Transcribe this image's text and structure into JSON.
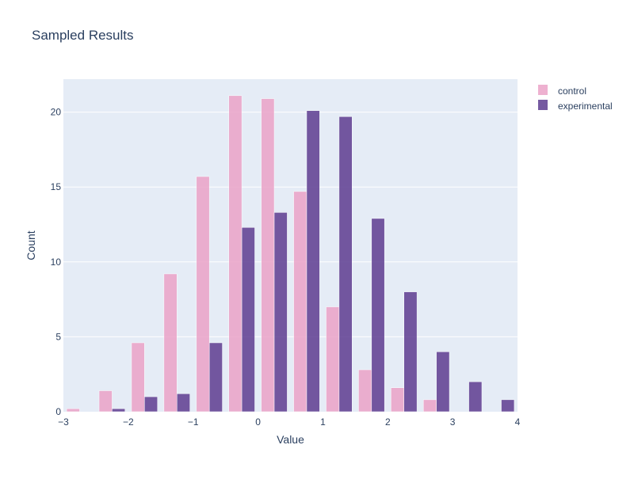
{
  "chart_data": {
    "type": "bar",
    "title": "Sampled Results",
    "xlabel": "Value",
    "ylabel": "Count",
    "xlim": [
      -3,
      4
    ],
    "ylim": [
      0,
      22.2
    ],
    "x_ticks": [
      -3,
      -2,
      -1,
      0,
      1,
      2,
      3,
      4
    ],
    "y_ticks": [
      0,
      5,
      10,
      15,
      20
    ],
    "grid": true,
    "legend_position": "top-right",
    "bin_width": 0.5,
    "series": [
      {
        "name": "control",
        "color": "#eba3c8",
        "bins": [
          {
            "x0": -3.0,
            "x1": -2.5,
            "count": 0.2
          },
          {
            "x0": -2.5,
            "x1": -2.0,
            "count": 1.4
          },
          {
            "x0": -2.0,
            "x1": -1.5,
            "count": 4.6
          },
          {
            "x0": -1.5,
            "x1": -1.0,
            "count": 9.2
          },
          {
            "x0": -1.0,
            "x1": -0.5,
            "count": 15.7
          },
          {
            "x0": -0.5,
            "x1": 0.0,
            "count": 21.1
          },
          {
            "x0": 0.0,
            "x1": 0.5,
            "count": 20.9
          },
          {
            "x0": 0.5,
            "x1": 1.0,
            "count": 14.7
          },
          {
            "x0": 1.0,
            "x1": 1.5,
            "count": 7.0
          },
          {
            "x0": 1.5,
            "x1": 2.0,
            "count": 2.8
          },
          {
            "x0": 2.0,
            "x1": 2.5,
            "count": 1.6
          },
          {
            "x0": 2.5,
            "x1": 3.0,
            "count": 0.8
          }
        ]
      },
      {
        "name": "experimental",
        "color": "#5e3d91",
        "bins": [
          {
            "x0": -2.5,
            "x1": -2.0,
            "count": 0.2
          },
          {
            "x0": -2.0,
            "x1": -1.5,
            "count": 1.0
          },
          {
            "x0": -1.5,
            "x1": -1.0,
            "count": 1.2
          },
          {
            "x0": -1.0,
            "x1": -0.5,
            "count": 4.6
          },
          {
            "x0": -0.5,
            "x1": 0.0,
            "count": 12.3
          },
          {
            "x0": 0.0,
            "x1": 0.5,
            "count": 13.3
          },
          {
            "x0": 0.5,
            "x1": 1.0,
            "count": 20.1
          },
          {
            "x0": 1.0,
            "x1": 1.5,
            "count": 19.7
          },
          {
            "x0": 1.5,
            "x1": 2.0,
            "count": 12.9
          },
          {
            "x0": 2.0,
            "x1": 2.5,
            "count": 8.0
          },
          {
            "x0": 2.5,
            "x1": 3.0,
            "count": 4.0
          },
          {
            "x0": 3.0,
            "x1": 3.5,
            "count": 2.0
          },
          {
            "x0": 3.5,
            "x1": 4.0,
            "count": 0.8
          }
        ]
      }
    ],
    "colors": {
      "plot_background": "#e5ecf6",
      "gridline": "#ffffff",
      "text": "#2a3f5f"
    }
  }
}
